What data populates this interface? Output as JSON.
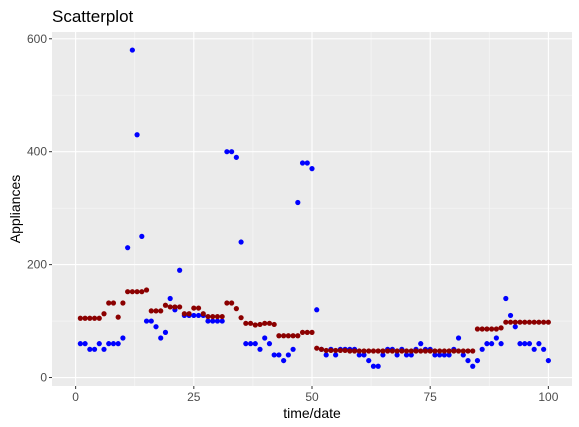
{
  "chart_data": {
    "type": "scatter",
    "title": "Scatterplot",
    "xlabel": "time/date",
    "ylabel": "Appliances",
    "xlim": [
      -5,
      105
    ],
    "ylim": [
      -15,
      612
    ],
    "x_ticks": [
      0,
      25,
      50,
      75,
      100
    ],
    "x_tick_labels": [
      "0",
      "25",
      "50",
      "75",
      "100"
    ],
    "y_ticks": [
      0,
      200,
      400,
      600
    ],
    "y_tick_labels": [
      "0",
      "200",
      "400",
      "600"
    ],
    "grid": true,
    "legend": "none",
    "panel_background": "#ebebeb",
    "series": [
      {
        "color": "#0000ff",
        "x": [
          1,
          2,
          3,
          4,
          5,
          6,
          7,
          8,
          9,
          10,
          11,
          12,
          13,
          14,
          15,
          16,
          17,
          18,
          19,
          20,
          21,
          22,
          23,
          24,
          25,
          26,
          27,
          28,
          29,
          30,
          31,
          32,
          33,
          34,
          35,
          36,
          37,
          38,
          39,
          40,
          41,
          42,
          43,
          44,
          45,
          46,
          47,
          48,
          49,
          50,
          51,
          52,
          53,
          54,
          55,
          56,
          57,
          58,
          59,
          60,
          61,
          62,
          63,
          64,
          65,
          66,
          67,
          68,
          69,
          70,
          71,
          72,
          73,
          74,
          75,
          76,
          77,
          78,
          79,
          80,
          81,
          82,
          83,
          84,
          85,
          86,
          87,
          88,
          89,
          90,
          91,
          92,
          93,
          94,
          95,
          96,
          97,
          98,
          99,
          100
        ],
        "y": [
          60,
          60,
          50,
          50,
          60,
          50,
          60,
          60,
          60,
          70,
          230,
          580,
          430,
          250,
          100,
          100,
          90,
          70,
          80,
          140,
          120,
          190,
          110,
          110,
          110,
          110,
          110,
          100,
          100,
          100,
          100,
          400,
          400,
          390,
          240,
          60,
          60,
          60,
          50,
          70,
          60,
          40,
          40,
          30,
          40,
          50,
          310,
          380,
          380,
          370,
          120,
          50,
          40,
          50,
          40,
          50,
          50,
          50,
          50,
          40,
          40,
          30,
          20,
          20,
          40,
          50,
          50,
          40,
          50,
          40,
          40,
          50,
          60,
          50,
          50,
          40,
          40,
          40,
          40,
          50,
          70,
          40,
          30,
          20,
          30,
          50,
          60,
          60,
          70,
          60,
          140,
          110,
          90,
          60,
          60,
          60,
          50,
          60,
          50,
          30
        ]
      },
      {
        "color": "#8b0000",
        "x": [
          1,
          2,
          3,
          4,
          5,
          6,
          7,
          8,
          9,
          10,
          11,
          12,
          13,
          14,
          15,
          16,
          17,
          18,
          19,
          20,
          21,
          22,
          23,
          24,
          25,
          26,
          27,
          28,
          29,
          30,
          31,
          32,
          33,
          34,
          35,
          36,
          37,
          38,
          39,
          40,
          41,
          42,
          43,
          44,
          45,
          46,
          47,
          48,
          49,
          50,
          51,
          52,
          53,
          54,
          55,
          56,
          57,
          58,
          59,
          60,
          61,
          62,
          63,
          64,
          65,
          66,
          67,
          68,
          69,
          70,
          71,
          72,
          73,
          74,
          75,
          76,
          77,
          78,
          79,
          80,
          81,
          82,
          83,
          84,
          85,
          86,
          87,
          88,
          89,
          90,
          91,
          92,
          93,
          94,
          95,
          96,
          97,
          98,
          99,
          100
        ],
        "y": [
          105,
          105,
          105,
          105,
          105,
          113,
          132,
          132,
          107,
          132,
          152,
          152,
          152,
          152,
          155,
          118,
          118,
          118,
          128,
          125,
          125,
          125,
          113,
          113,
          123,
          123,
          113,
          108,
          108,
          108,
          108,
          132,
          132,
          122,
          106,
          96,
          96,
          93,
          94,
          96,
          96,
          94,
          74,
          74,
          74,
          74,
          74,
          80,
          80,
          80,
          52,
          50,
          48,
          48,
          48,
          48,
          48,
          47,
          47,
          47,
          47,
          47,
          47,
          47,
          47,
          47,
          47,
          47,
          47,
          47,
          47,
          47,
          47,
          47,
          47,
          47,
          47,
          47,
          47,
          47,
          47,
          47,
          47,
          47,
          86,
          86,
          86,
          86,
          86,
          88,
          98,
          98,
          98,
          98,
          98,
          98,
          98,
          98,
          98,
          98
        ]
      }
    ]
  }
}
